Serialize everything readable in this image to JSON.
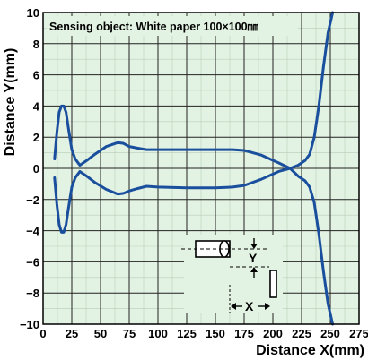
{
  "chart_data": {
    "type": "line",
    "annotation": "Sensing object: White paper 100×100㎜",
    "xlabel": "Distance X(mm)",
    "ylabel": "Distance Y(mm)",
    "xlim": [
      0,
      275
    ],
    "ylim": [
      -10,
      10
    ],
    "x_ticks": [
      0,
      25,
      50,
      75,
      100,
      125,
      150,
      175,
      200,
      225,
      250,
      275
    ],
    "y_ticks": [
      10,
      8,
      6,
      4,
      2,
      0,
      -2,
      -4,
      -6,
      -8,
      -10
    ],
    "x_minor_step": 12.5,
    "y_minor_step": 1,
    "grid": true,
    "background_color": "#e3f3e3",
    "line_color": "#1a4f9e",
    "series": [
      {
        "x": [
          10,
          12,
          14,
          16,
          18,
          20,
          22,
          25,
          28,
          32,
          38,
          45,
          55,
          65,
          70,
          75,
          82,
          90,
          100,
          125,
          150,
          165,
          175,
          190,
          205,
          215,
          222,
          228,
          232,
          236,
          240,
          244,
          248,
          252
        ],
        "y": [
          0.6,
          2.3,
          3.6,
          4.0,
          4.0,
          3.6,
          2.6,
          1.2,
          0.6,
          0.2,
          0.5,
          0.9,
          1.4,
          1.65,
          1.6,
          1.4,
          1.3,
          1.2,
          1.2,
          1.2,
          1.2,
          1.2,
          1.15,
          0.85,
          0.35,
          0.0,
          0.2,
          0.5,
          0.9,
          2.0,
          4.0,
          6.5,
          8.7,
          10.0
        ]
      },
      {
        "x": [
          10,
          12,
          14,
          16,
          18,
          20,
          22,
          25,
          28,
          32,
          38,
          45,
          55,
          65,
          70,
          75,
          82,
          90,
          100,
          125,
          150,
          165,
          175,
          190,
          205,
          215,
          222,
          228,
          232,
          236,
          240,
          244,
          248,
          252
        ],
        "y": [
          -0.6,
          -2.3,
          -3.6,
          -4.1,
          -4.1,
          -3.6,
          -2.6,
          -1.2,
          -0.6,
          -0.2,
          -0.5,
          -0.9,
          -1.35,
          -1.65,
          -1.6,
          -1.45,
          -1.3,
          -1.15,
          -1.2,
          -1.25,
          -1.25,
          -1.2,
          -1.1,
          -0.7,
          -0.2,
          0.0,
          -0.5,
          -0.8,
          -1.2,
          -2.2,
          -4.2,
          -6.6,
          -8.7,
          -10.0
        ]
      }
    ],
    "diagram_labels": {
      "y": "Y",
      "x": "X"
    }
  }
}
